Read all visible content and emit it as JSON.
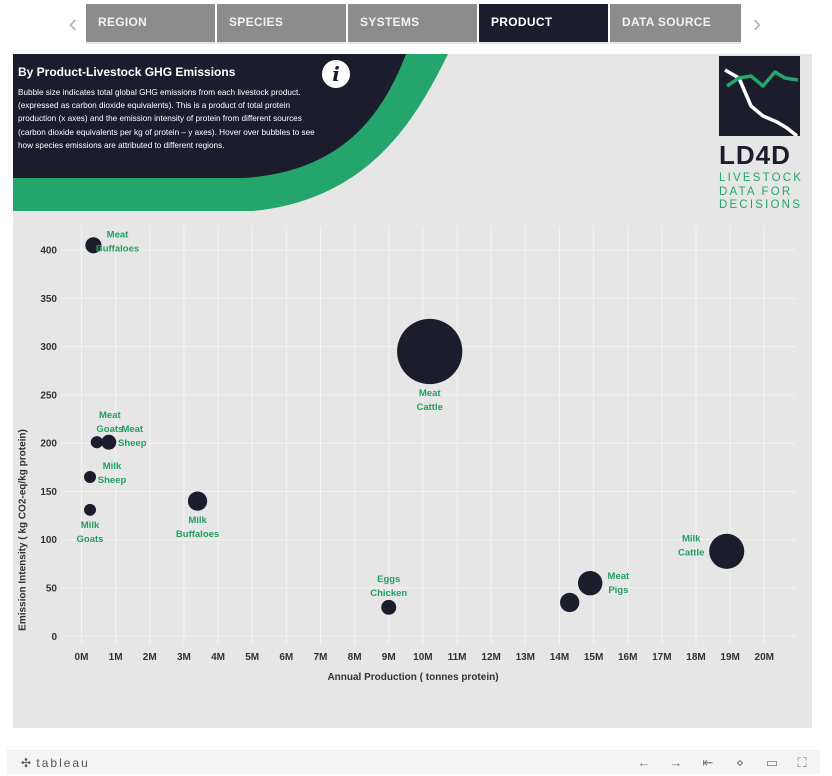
{
  "tabs": [
    {
      "label": "REGION",
      "active": false
    },
    {
      "label": "SPECIES",
      "active": false
    },
    {
      "label": "SYSTEMS",
      "active": false
    },
    {
      "label": "PRODUCT",
      "active": true
    },
    {
      "label": "DATA SOURCE",
      "active": false
    }
  ],
  "nav": {
    "prev": "‹",
    "next": "›"
  },
  "header": {
    "title": "By Product-Livestock GHG Emissions",
    "description": "Bubble size indicates total global GHG emissions from each livestock product. (expressed as carbon dioxide equivalents). This is a product of total protein production (x axes) and the emission intensity of protein from different sources (carbon dioxide equivalents per kg of protein – y axes). Hover over bubbles to see how species emissions are attributed to different regions.",
    "info_glyph": "i"
  },
  "logo": {
    "name": "LD4D",
    "tagline": [
      "LIVESTOCK",
      "DATA FOR",
      "DECISIONS"
    ]
  },
  "colors": {
    "dark": "#1c1d2c",
    "green": "#23a56b",
    "panel": "#e6e6e6",
    "label_green": "#20a060"
  },
  "chart_data": {
    "type": "scatter",
    "xlabel": "Annual Production ( tonnes protein)",
    "ylabel": "Emission Intensity  ( kg CO2-eq/kg protein)",
    "xlim": [
      -0.6,
      20.9
    ],
    "ylim": [
      -8,
      425
    ],
    "x_ticks": [
      0,
      1,
      2,
      3,
      4,
      5,
      6,
      7,
      8,
      9,
      10,
      11,
      12,
      13,
      14,
      15,
      16,
      17,
      18,
      19,
      20
    ],
    "x_tick_labels": [
      "0M",
      "1M",
      "2M",
      "3M",
      "4M",
      "5M",
      "6M",
      "7M",
      "8M",
      "9M",
      "10M",
      "11M",
      "12M",
      "13M",
      "14M",
      "15M",
      "16M",
      "17M",
      "18M",
      "19M",
      "20M"
    ],
    "y_ticks": [
      0,
      50,
      100,
      150,
      200,
      250,
      300,
      350,
      400
    ],
    "grid": true,
    "points": [
      {
        "label": [
          "Meat",
          "Buffaloes"
        ],
        "x": 0.35,
        "y": 405,
        "size": 0.35
      },
      {
        "label": [
          "Meat",
          "Cattle"
        ],
        "x": 10.2,
        "y": 295,
        "size": 3.0
      },
      {
        "label": [
          "Meat",
          "Goats"
        ],
        "x": 0.45,
        "y": 201,
        "size": 0.2
      },
      {
        "label": [
          "Meat",
          "Sheep"
        ],
        "x": 0.8,
        "y": 201,
        "size": 0.3
      },
      {
        "label": [
          "Milk",
          "Sheep"
        ],
        "x": 0.25,
        "y": 165,
        "size": 0.08
      },
      {
        "label": [
          "Milk",
          "Goats"
        ],
        "x": 0.25,
        "y": 131,
        "size": 0.07
      },
      {
        "label": [
          "Milk",
          "Buffaloes"
        ],
        "x": 3.4,
        "y": 140,
        "size": 0.5
      },
      {
        "label": [
          "Eggs",
          "Chicken"
        ],
        "x": 9.0,
        "y": 30,
        "size": 0.3
      },
      {
        "label": [
          "Milk",
          "Cattle"
        ],
        "x": 18.9,
        "y": 88,
        "size": 1.65
      },
      {
        "label": [
          "Meat",
          "Pigs"
        ],
        "x": 14.9,
        "y": 55,
        "size": 0.8
      },
      {
        "label": [],
        "x": 14.3,
        "y": 35,
        "size": 0.5
      }
    ]
  },
  "toolbar": {
    "brand": "tableau",
    "brand_mark": "✣",
    "undo": "←",
    "redo": "→",
    "revert": "⇤",
    "share": "⋄",
    "comment": "▭",
    "fullscreen": "⛶"
  }
}
